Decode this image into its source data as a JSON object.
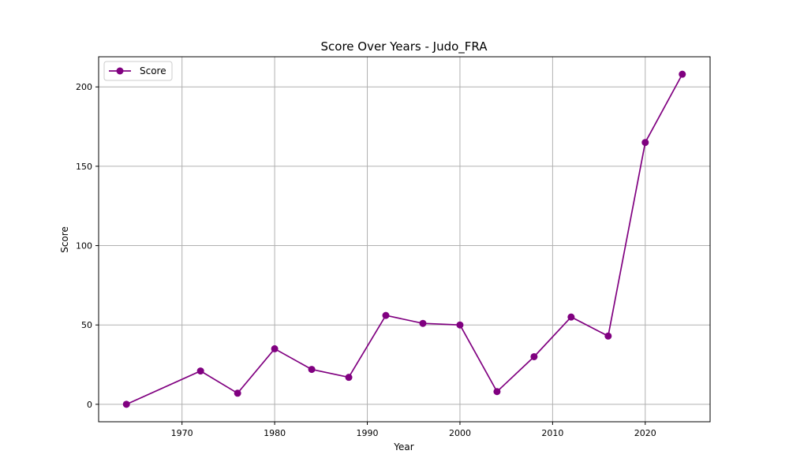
{
  "chart_data": {
    "type": "line",
    "title": "Score Over Years - Judo_FRA",
    "xlabel": "Year",
    "ylabel": "Score",
    "xlim": [
      1961,
      2027
    ],
    "ylim": [
      -11,
      219
    ],
    "xticks": [
      1970,
      1980,
      1990,
      2000,
      2010,
      2020
    ],
    "yticks": [
      0,
      50,
      100,
      150,
      200
    ],
    "grid": true,
    "legend_position": "top-left",
    "series": [
      {
        "name": "Score",
        "color": "#800080",
        "marker": "circle",
        "x": [
          1964,
          1972,
          1976,
          1980,
          1984,
          1988,
          1992,
          1996,
          2000,
          2004,
          2008,
          2012,
          2016,
          2020,
          2024
        ],
        "y": [
          0,
          21,
          7,
          35,
          22,
          17,
          56,
          51,
          50,
          8,
          30,
          55,
          43,
          165,
          208
        ]
      }
    ]
  }
}
